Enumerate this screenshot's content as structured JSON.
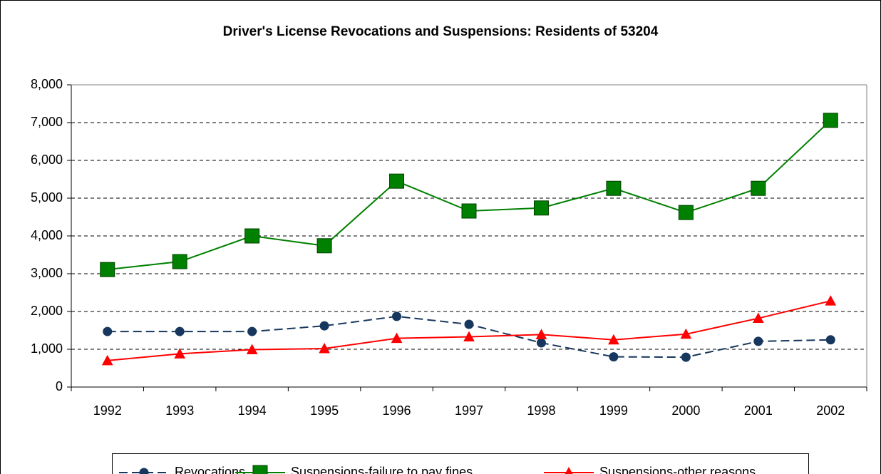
{
  "chart_data": {
    "type": "line",
    "title": "Driver's License Revocations and Suspensions: Residents of 53204",
    "categories": [
      "1992",
      "1993",
      "1994",
      "1995",
      "1996",
      "1997",
      "1998",
      "1999",
      "2000",
      "2001",
      "2002"
    ],
    "series": [
      {
        "name": "Revocations",
        "color": "#17375e",
        "marker": "circle",
        "dash": true,
        "values": [
          1470,
          1470,
          1470,
          1620,
          1870,
          1660,
          1170,
          800,
          790,
          1210,
          1250
        ]
      },
      {
        "name": "Suspensions-failure to pay fines",
        "color": "#008000",
        "marker": "square",
        "dash": false,
        "values": [
          3110,
          3320,
          4000,
          3740,
          5450,
          4660,
          4740,
          5260,
          4620,
          5260,
          7060
        ]
      },
      {
        "name": "Suspensions-other reasons",
        "color": "#ff0000",
        "marker": "triangle",
        "dash": false,
        "values": [
          700,
          880,
          990,
          1020,
          1290,
          1330,
          1390,
          1250,
          1400,
          1820,
          2280
        ]
      }
    ],
    "ylim": [
      0,
      8000
    ],
    "yticks": [
      0,
      {
        "value": 1000,
        "label": "1,000"
      },
      {
        "value": 2000,
        "label": "2,000"
      },
      {
        "value": 3000,
        "label": "3,000"
      },
      {
        "value": 4000,
        "label": "4,000"
      },
      {
        "value": 5000,
        "label": "5,000"
      },
      {
        "value": 6000,
        "label": "6,000"
      },
      {
        "value": 7000,
        "label": "7,000"
      },
      {
        "value": 8000,
        "label": "8,000"
      }
    ],
    "grid": true,
    "legend": "bottom"
  }
}
